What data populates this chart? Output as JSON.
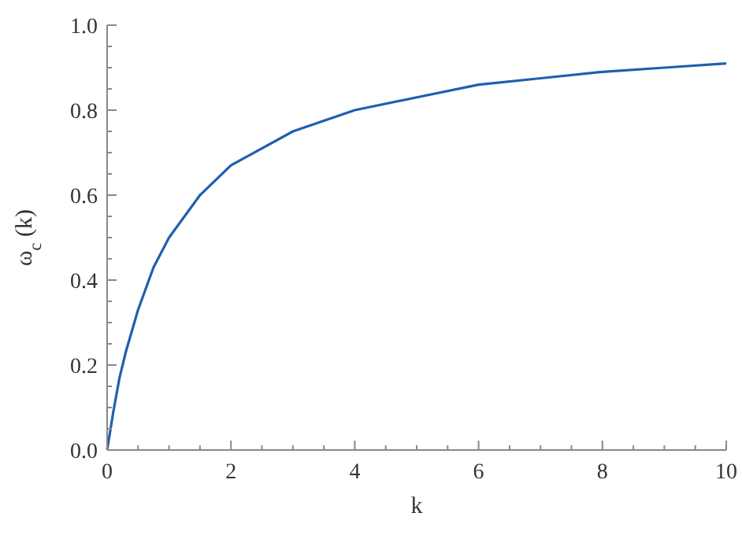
{
  "chart_data": {
    "type": "line",
    "xlabel": "k",
    "ylabel": "ω$_{c}$ (k)",
    "x": [
      0,
      0.1,
      0.2,
      0.3,
      0.5,
      0.75,
      1,
      1.5,
      2,
      2.5,
      3,
      4,
      5,
      6,
      7,
      8,
      9,
      10
    ],
    "series": [
      {
        "color": "#1f5fae",
        "values": [
          0,
          0.09,
          0.17,
          0.23,
          0.33,
          0.43,
          0.5,
          0.6,
          0.67,
          0.71,
          0.75,
          0.8,
          0.83,
          0.86,
          0.875,
          0.89,
          0.9,
          0.91
        ]
      }
    ],
    "xlim": [
      0,
      10
    ],
    "ylim": [
      0,
      1
    ],
    "xticks": [
      0,
      {
        "value": 0.5,
        "label": null
      },
      {
        "value": 1,
        "label": null
      },
      {
        "value": 1.5,
        "label": null
      },
      2,
      {
        "value": 2.5,
        "label": null
      },
      {
        "value": 3,
        "label": null
      },
      {
        "value": 3.5,
        "label": null
      },
      4,
      {
        "value": 4.5,
        "label": null
      },
      {
        "value": 5,
        "label": null
      },
      {
        "value": 5.5,
        "label": null
      },
      6,
      {
        "value": 6.5,
        "label": null
      },
      {
        "value": 7,
        "label": null
      },
      {
        "value": 7.5,
        "label": null
      },
      8,
      {
        "value": 8.5,
        "label": null
      },
      {
        "value": 9,
        "label": null
      },
      {
        "value": 9.5,
        "label": null
      },
      10
    ],
    "yticks": [
      {
        "value": 0,
        "label": "0.0"
      },
      {
        "value": 0.05,
        "label": null
      },
      {
        "value": 0.1,
        "label": null
      },
      {
        "value": 0.15,
        "label": null
      },
      0.2,
      {
        "value": 0.25,
        "label": null
      },
      {
        "value": 0.3,
        "label": null
      },
      {
        "value": 0.35,
        "label": null
      },
      0.4,
      {
        "value": 0.45,
        "label": null
      },
      {
        "value": 0.5,
        "label": null
      },
      {
        "value": 0.55,
        "label": null
      },
      0.6,
      {
        "value": 0.65,
        "label": null
      },
      {
        "value": 0.7,
        "label": null
      },
      {
        "value": 0.75,
        "label": null
      },
      0.8,
      {
        "value": 0.85,
        "label": null
      },
      {
        "value": 0.9,
        "label": null
      },
      {
        "value": 0.95,
        "label": null
      },
      {
        "value": 1,
        "label": "1.0"
      }
    ],
    "grid": false,
    "marker": "none",
    "line_style": "solid",
    "legend": false
  }
}
